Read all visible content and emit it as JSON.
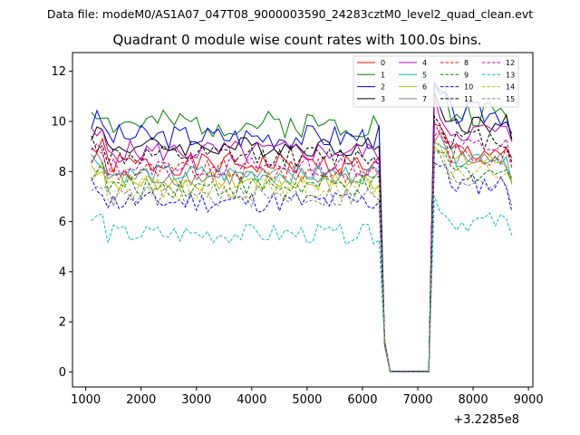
{
  "chart_data": {
    "type": "line",
    "suptitle": "Data file: modeM0/AS1A07_047T08_9000003590_24283cztM0_level2_quad_clean.evt",
    "title": "Quadrant 0 module wise count rates with 100.0s bins.",
    "xlabel": "",
    "ylabel": "",
    "x_offset_label": "+3.2285e8",
    "xlim": [
      760,
      9080
    ],
    "ylim": [
      -0.6,
      12.75
    ],
    "xticks": [
      1000,
      2000,
      3000,
      4000,
      5000,
      6000,
      7000,
      8000,
      9000
    ],
    "yticks": [
      0,
      2,
      4,
      6,
      8,
      10,
      12
    ],
    "x": {
      "start": 1100,
      "step": 100,
      "count": 77
    },
    "gap": {
      "from": 6500,
      "to": 7200
    },
    "legend_location": "upper-right",
    "series": [
      {
        "name": "0",
        "color": "#ff0000",
        "style": "solid",
        "pre": 8.3,
        "post": 8.8,
        "amp": 0.45,
        "seed": 1,
        "gapLevel": 0.02
      },
      {
        "name": "1",
        "color": "#008000",
        "style": "solid",
        "pre": 9.9,
        "post": 10.3,
        "amp": 0.55,
        "seed": 2,
        "gapLevel": 0.03
      },
      {
        "name": "2",
        "color": "#0000ff",
        "style": "solid",
        "pre": 9.4,
        "post": 10.3,
        "amp": 0.5,
        "seed": 3,
        "gapLevel": 0.03
      },
      {
        "name": "3",
        "color": "#000000",
        "style": "solid",
        "pre": 9.0,
        "post": 9.9,
        "amp": 0.4,
        "seed": 4,
        "gapLevel": 0.02
      },
      {
        "name": "4",
        "color": "#bf00bf",
        "style": "solid",
        "pre": 8.8,
        "post": 9.6,
        "amp": 0.45,
        "seed": 5,
        "gapLevel": 0.02
      },
      {
        "name": "5",
        "color": "#00bfbf",
        "style": "solid",
        "pre": 7.9,
        "post": 8.6,
        "amp": 0.4,
        "seed": 6,
        "gapLevel": 0.01
      },
      {
        "name": "6",
        "color": "#bfbf00",
        "style": "solid",
        "pre": 7.6,
        "post": 8.4,
        "amp": 0.4,
        "seed": 7,
        "gapLevel": 0.01
      },
      {
        "name": "7",
        "color": "#808080",
        "style": "solid",
        "pre": 7.8,
        "post": 8.5,
        "amp": 0.4,
        "seed": 8,
        "gapLevel": 0.01
      },
      {
        "name": "8",
        "color": "#ff0000",
        "style": "dashed",
        "pre": 8.0,
        "post": 8.7,
        "amp": 0.45,
        "seed": 9,
        "gapLevel": 0.01
      },
      {
        "name": "9",
        "color": "#008000",
        "style": "dashed",
        "pre": 7.4,
        "post": 8.0,
        "amp": 0.45,
        "seed": 10,
        "gapLevel": 0.01
      },
      {
        "name": "10",
        "color": "#0000ff",
        "style": "dashed",
        "pre": 6.8,
        "post": 7.5,
        "amp": 0.45,
        "seed": 11,
        "gapLevel": 0.01
      },
      {
        "name": "11",
        "color": "#000000",
        "style": "dashed",
        "pre": 8.6,
        "post": 9.3,
        "amp": 0.45,
        "seed": 12,
        "gapLevel": 0.02
      },
      {
        "name": "12",
        "color": "#bf00bf",
        "style": "dashed",
        "pre": 8.2,
        "post": 9.0,
        "amp": 0.4,
        "seed": 13,
        "gapLevel": 0.01
      },
      {
        "name": "13",
        "color": "#00bfbf",
        "style": "dashed",
        "pre": 5.5,
        "post": 6.0,
        "amp": 0.4,
        "seed": 14,
        "gapLevel": 0.01
      },
      {
        "name": "14",
        "color": "#bfbf00",
        "style": "dashed",
        "pre": 7.3,
        "post": 8.0,
        "amp": 0.45,
        "seed": 15,
        "gapLevel": 0.01
      },
      {
        "name": "15",
        "color": "#808080",
        "style": "dashed",
        "pre": 7.0,
        "post": 7.7,
        "amp": 0.45,
        "seed": 16,
        "gapLevel": 0.01
      }
    ]
  }
}
